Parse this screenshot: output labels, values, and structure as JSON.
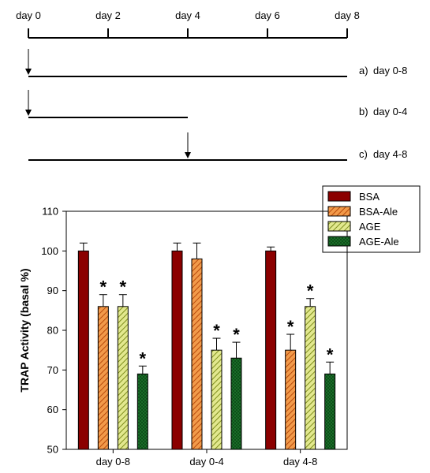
{
  "timeline": {
    "day_labels": [
      "day 0",
      "day 2",
      "day 4",
      "day 6",
      "day 8"
    ],
    "day_values": [
      0,
      2,
      4,
      6,
      8
    ],
    "conditions": [
      {
        "letter": "a)",
        "text": "day 0-8",
        "start": 0,
        "end": 8,
        "arrow_at": 0
      },
      {
        "letter": "b)",
        "text": "day 0-4",
        "start": 0,
        "end": 4,
        "arrow_at": 0
      },
      {
        "letter": "c)",
        "text": "day 4-8",
        "start": 0,
        "end": 8,
        "arrow_at": 4
      }
    ]
  },
  "chart_data": {
    "type": "bar",
    "title": "",
    "xlabel": "",
    "ylabel": "TRAP Activity (basal %)",
    "ylim": [
      50,
      110
    ],
    "yticks": [
      50,
      60,
      70,
      80,
      90,
      100,
      110
    ],
    "categories": [
      "day 0-8",
      "day 0-4",
      "day 4-8"
    ],
    "series": [
      {
        "name": "BSA",
        "values": [
          100,
          100,
          100
        ],
        "errors": [
          2,
          2,
          1
        ],
        "significant": [
          false,
          false,
          false
        ],
        "color": "#8b0000",
        "pattern": "solid"
      },
      {
        "name": "BSA-Ale",
        "values": [
          86,
          98,
          75
        ],
        "errors": [
          3,
          4,
          4
        ],
        "significant": [
          true,
          false,
          true
        ],
        "color": "#e8772a",
        "pattern": "diagonal-hatch"
      },
      {
        "name": "AGE",
        "values": [
          86,
          75,
          86
        ],
        "errors": [
          3,
          3,
          2
        ],
        "significant": [
          true,
          true,
          true
        ],
        "color": "#c9d35a",
        "pattern": "cross-hatch"
      },
      {
        "name": "AGE-Ale",
        "values": [
          69,
          73,
          69
        ],
        "errors": [
          2,
          4,
          3
        ],
        "significant": [
          true,
          true,
          true
        ],
        "color": "#1e7a2e",
        "pattern": "dense-hatch"
      }
    ],
    "significance_marker": "*",
    "legend_position": "top-right",
    "grid": false
  }
}
